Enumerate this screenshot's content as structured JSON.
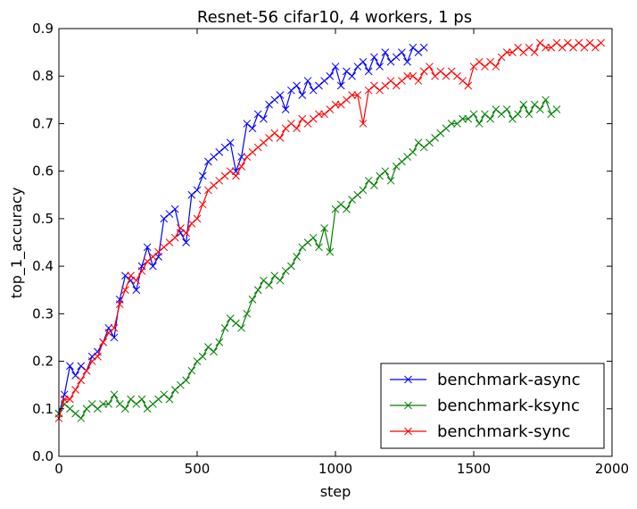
{
  "chart_data": {
    "type": "line",
    "title": "Resnet-56 cifar10, 4 workers, 1 ps",
    "xlabel": "step",
    "ylabel": "top_1_accuracy",
    "xlim": [
      0,
      2000
    ],
    "ylim": [
      0.0,
      0.9
    ],
    "xticks": [
      "0",
      "500",
      "1000",
      "1500",
      "2000"
    ],
    "yticks": [
      "0.0",
      "0.1",
      "0.2",
      "0.3",
      "0.4",
      "0.5",
      "0.6",
      "0.7",
      "0.8",
      "0.9"
    ],
    "grid": false,
    "legend_position": "lower-right",
    "marker": "x",
    "series": [
      {
        "name": "benchmark-async",
        "color": "#0000ff",
        "x": [
          0,
          20,
          40,
          60,
          80,
          100,
          120,
          140,
          160,
          180,
          200,
          220,
          240,
          260,
          280,
          300,
          320,
          340,
          360,
          380,
          400,
          420,
          440,
          460,
          480,
          500,
          520,
          540,
          560,
          580,
          600,
          620,
          640,
          660,
          680,
          700,
          720,
          740,
          760,
          780,
          800,
          820,
          840,
          860,
          880,
          900,
          920,
          940,
          960,
          980,
          1000,
          1020,
          1040,
          1060,
          1080,
          1100,
          1120,
          1140,
          1160,
          1180,
          1200,
          1220,
          1240,
          1260,
          1280,
          1300,
          1320
        ],
        "y": [
          0.09,
          0.13,
          0.19,
          0.17,
          0.19,
          0.18,
          0.21,
          0.22,
          0.24,
          0.27,
          0.25,
          0.33,
          0.38,
          0.37,
          0.35,
          0.4,
          0.44,
          0.4,
          0.42,
          0.5,
          0.51,
          0.52,
          0.47,
          0.45,
          0.55,
          0.56,
          0.59,
          0.62,
          0.63,
          0.64,
          0.65,
          0.66,
          0.6,
          0.63,
          0.7,
          0.69,
          0.72,
          0.71,
          0.74,
          0.75,
          0.76,
          0.73,
          0.77,
          0.78,
          0.76,
          0.79,
          0.77,
          0.78,
          0.79,
          0.8,
          0.82,
          0.78,
          0.81,
          0.8,
          0.82,
          0.83,
          0.81,
          0.84,
          0.82,
          0.85,
          0.83,
          0.84,
          0.85,
          0.83,
          0.86,
          0.85,
          0.86
        ]
      },
      {
        "name": "benchmark-ksync",
        "color": "#008000",
        "x": [
          0,
          20,
          40,
          60,
          80,
          100,
          120,
          140,
          160,
          180,
          200,
          220,
          240,
          260,
          280,
          300,
          320,
          340,
          360,
          380,
          400,
          420,
          440,
          460,
          480,
          500,
          520,
          540,
          560,
          580,
          600,
          620,
          640,
          660,
          680,
          700,
          720,
          740,
          760,
          780,
          800,
          820,
          840,
          860,
          880,
          900,
          920,
          940,
          960,
          980,
          1000,
          1020,
          1040,
          1060,
          1080,
          1100,
          1120,
          1140,
          1160,
          1180,
          1200,
          1220,
          1240,
          1260,
          1280,
          1300,
          1320,
          1340,
          1360,
          1380,
          1400,
          1420,
          1440,
          1460,
          1480,
          1500,
          1520,
          1540,
          1560,
          1580,
          1600,
          1620,
          1640,
          1660,
          1680,
          1700,
          1720,
          1740,
          1760,
          1780,
          1800
        ],
        "y": [
          0.09,
          0.11,
          0.1,
          0.09,
          0.08,
          0.1,
          0.11,
          0.1,
          0.11,
          0.11,
          0.13,
          0.11,
          0.1,
          0.12,
          0.11,
          0.12,
          0.1,
          0.11,
          0.12,
          0.13,
          0.12,
          0.14,
          0.15,
          0.16,
          0.18,
          0.2,
          0.21,
          0.23,
          0.22,
          0.24,
          0.27,
          0.29,
          0.28,
          0.27,
          0.3,
          0.33,
          0.35,
          0.37,
          0.36,
          0.38,
          0.37,
          0.39,
          0.4,
          0.42,
          0.44,
          0.45,
          0.46,
          0.44,
          0.48,
          0.43,
          0.52,
          0.53,
          0.52,
          0.54,
          0.55,
          0.56,
          0.58,
          0.57,
          0.59,
          0.6,
          0.58,
          0.61,
          0.62,
          0.63,
          0.64,
          0.66,
          0.65,
          0.66,
          0.67,
          0.68,
          0.69,
          0.7,
          0.7,
          0.71,
          0.71,
          0.72,
          0.7,
          0.72,
          0.71,
          0.73,
          0.72,
          0.73,
          0.71,
          0.72,
          0.74,
          0.72,
          0.74,
          0.73,
          0.75,
          0.72,
          0.73
        ]
      },
      {
        "name": "benchmark-sync",
        "color": "#ff0000",
        "x": [
          0,
          20,
          40,
          60,
          80,
          100,
          120,
          140,
          160,
          180,
          200,
          220,
          240,
          260,
          280,
          300,
          320,
          340,
          360,
          380,
          400,
          420,
          440,
          460,
          480,
          500,
          520,
          540,
          560,
          580,
          600,
          620,
          640,
          660,
          680,
          700,
          720,
          740,
          760,
          780,
          800,
          820,
          840,
          860,
          880,
          900,
          920,
          940,
          960,
          980,
          1000,
          1020,
          1040,
          1060,
          1080,
          1100,
          1120,
          1140,
          1160,
          1180,
          1200,
          1220,
          1240,
          1260,
          1280,
          1300,
          1320,
          1340,
          1360,
          1380,
          1400,
          1420,
          1440,
          1460,
          1480,
          1500,
          1520,
          1540,
          1560,
          1580,
          1600,
          1620,
          1640,
          1660,
          1680,
          1700,
          1720,
          1740,
          1760,
          1780,
          1800,
          1820,
          1840,
          1860,
          1880,
          1900,
          1920,
          1940,
          1960
        ],
        "y": [
          0.08,
          0.12,
          0.12,
          0.14,
          0.16,
          0.18,
          0.2,
          0.21,
          0.24,
          0.26,
          0.27,
          0.32,
          0.35,
          0.38,
          0.37,
          0.39,
          0.41,
          0.42,
          0.43,
          0.44,
          0.45,
          0.46,
          0.48,
          0.47,
          0.49,
          0.5,
          0.53,
          0.56,
          0.57,
          0.58,
          0.59,
          0.6,
          0.59,
          0.61,
          0.63,
          0.64,
          0.65,
          0.66,
          0.67,
          0.68,
          0.67,
          0.69,
          0.7,
          0.69,
          0.71,
          0.7,
          0.71,
          0.72,
          0.72,
          0.73,
          0.74,
          0.74,
          0.75,
          0.76,
          0.76,
          0.7,
          0.77,
          0.78,
          0.77,
          0.78,
          0.79,
          0.78,
          0.79,
          0.8,
          0.8,
          0.79,
          0.81,
          0.82,
          0.8,
          0.81,
          0.8,
          0.81,
          0.8,
          0.79,
          0.78,
          0.82,
          0.83,
          0.82,
          0.83,
          0.82,
          0.84,
          0.85,
          0.85,
          0.86,
          0.85,
          0.86,
          0.85,
          0.87,
          0.86,
          0.86,
          0.87,
          0.86,
          0.87,
          0.86,
          0.87,
          0.86,
          0.87,
          0.86,
          0.87
        ]
      }
    ]
  }
}
